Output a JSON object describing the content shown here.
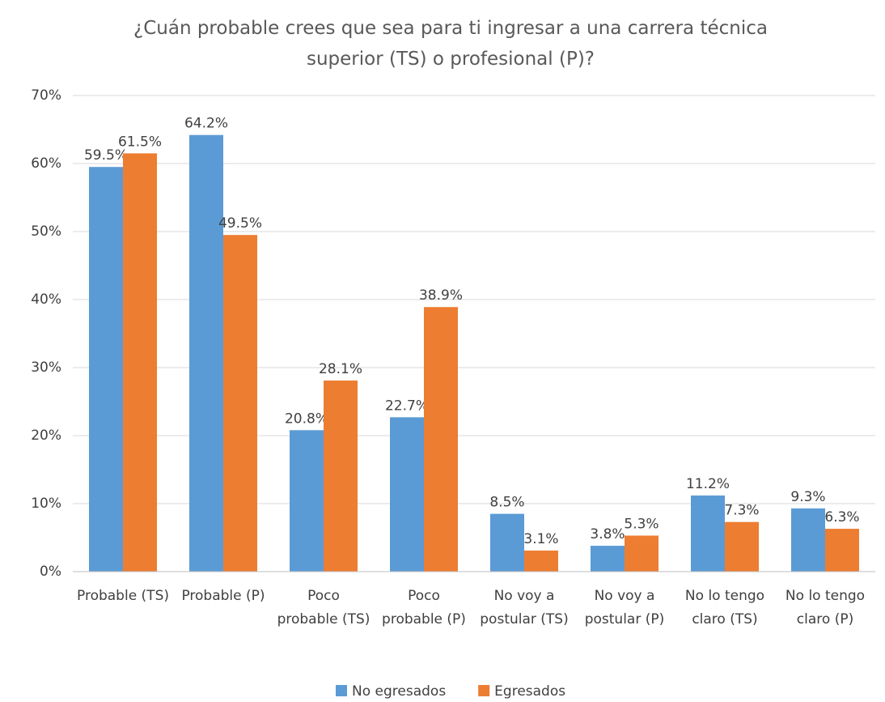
{
  "chart_data": {
    "type": "bar",
    "title": "¿Cuán probable crees que sea para ti ingresar a una carrera técnica superior (TS) o profesional (P)?",
    "categories": [
      "Probable (TS)",
      "Probable (P)",
      "Poco probable (TS)",
      "Poco probable (P)",
      "No voy a postular (TS)",
      "No voy a postular (P)",
      "No lo tengo claro (TS)",
      "No lo tengo claro (P)"
    ],
    "series": [
      {
        "name": "No egresados",
        "color": "#5b9bd5",
        "values": [
          59.5,
          64.2,
          20.8,
          22.7,
          8.5,
          3.8,
          11.2,
          9.3
        ],
        "value_labels": [
          "59.5%",
          "64.2%",
          "20.8%",
          "22.7%",
          "8.5%",
          "3.8%",
          "11.2%",
          "9.3%"
        ]
      },
      {
        "name": "Egresados",
        "color": "#ed7d31",
        "values": [
          61.5,
          49.5,
          28.1,
          38.9,
          3.1,
          5.3,
          7.3,
          6.3
        ],
        "value_labels": [
          "61.5%",
          "49.5%",
          "28.1%",
          "38.9%",
          "3.1%",
          "5.3%",
          "7.3%",
          "6.3%"
        ]
      }
    ],
    "ylim": [
      0,
      70
    ],
    "yticks": [
      {
        "value": 0,
        "label": "0%"
      },
      {
        "value": 10,
        "label": "10%"
      },
      {
        "value": 20,
        "label": "20%"
      },
      {
        "value": 30,
        "label": "30%"
      },
      {
        "value": 40,
        "label": "40%"
      },
      {
        "value": 50,
        "label": "50%"
      },
      {
        "value": 60,
        "label": "60%"
      },
      {
        "value": 70,
        "label": "70%"
      }
    ],
    "grid": true,
    "legend": "bottom"
  }
}
